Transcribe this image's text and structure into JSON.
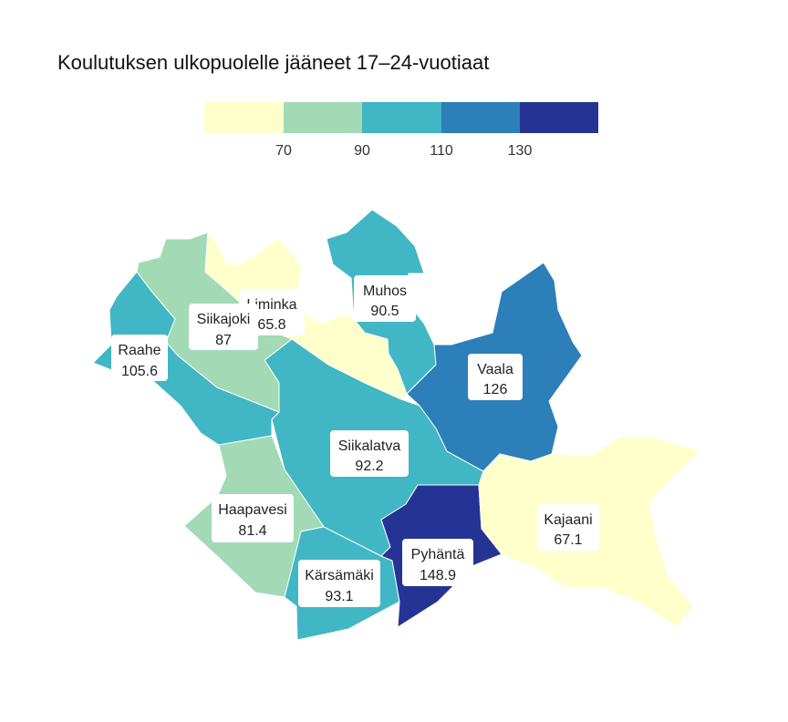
{
  "title": "Koulutuksen ulkopuolelle jääneet 17–24-vuotiaat",
  "legend": {
    "ticks": [
      "70",
      "90",
      "110",
      "130"
    ],
    "colors": [
      "#ffffcc",
      "#a1dab4",
      "#41b6c4",
      "#2c7fb8",
      "#253494"
    ]
  },
  "regions": [
    {
      "id": "liminka",
      "name": "Liminka",
      "value": "65.8",
      "color": "#ffffcc"
    },
    {
      "id": "muhos",
      "name": "Muhos",
      "value": "90.5",
      "color": "#41b6c4"
    },
    {
      "id": "siikajoki",
      "name": "Siikajoki",
      "value": "87",
      "color": "#a1dab4"
    },
    {
      "id": "raahe",
      "name": "Raahe",
      "value": "105.6",
      "color": "#41b6c4"
    },
    {
      "id": "vaala",
      "name": "Vaala",
      "value": "126",
      "color": "#2c7fb8"
    },
    {
      "id": "siikalatva",
      "name": "Siikalatva",
      "value": "92.2",
      "color": "#41b6c4"
    },
    {
      "id": "haapavesi",
      "name": "Haapavesi",
      "value": "81.4",
      "color": "#a1dab4"
    },
    {
      "id": "kajaani",
      "name": "Kajaani",
      "value": "67.1",
      "color": "#ffffcc"
    },
    {
      "id": "pyhanta",
      "name": "Pyhäntä",
      "value": "148.9",
      "color": "#253494"
    },
    {
      "id": "karsamaki",
      "name": "Kärsämäki",
      "value": "93.1",
      "color": "#41b6c4"
    }
  ]
}
